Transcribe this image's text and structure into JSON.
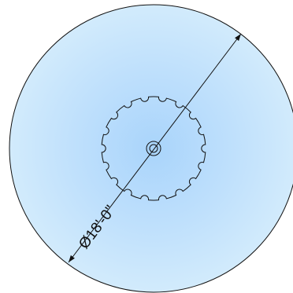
{
  "drawing": {
    "dimension_label": "Ø18'-0\"",
    "colors": {
      "fill_center": "#a9d4fb",
      "fill_edge": "#d2ebfc",
      "line": "#111111",
      "background": "#ffffff"
    },
    "notch_count": 18
  }
}
